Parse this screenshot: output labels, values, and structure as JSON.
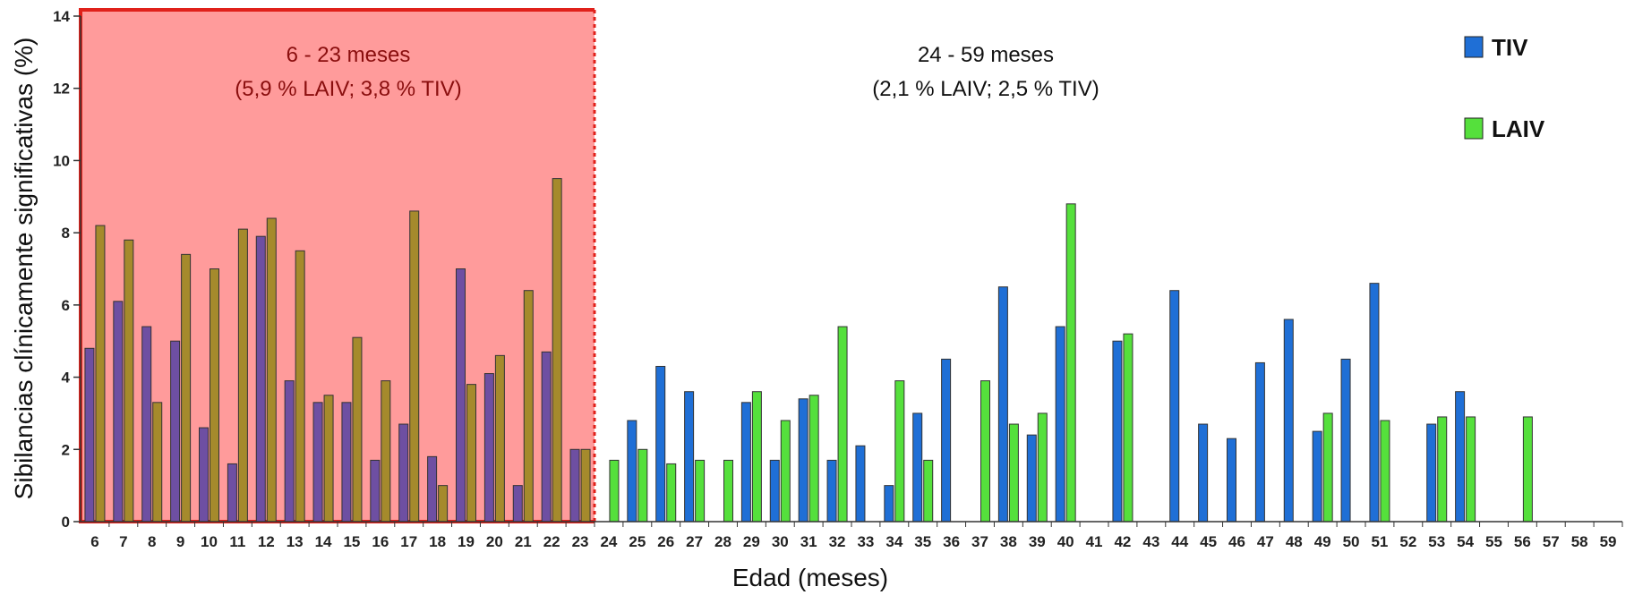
{
  "chart_data": {
    "type": "bar",
    "xlabel": "Edad (meses)",
    "ylabel": "Sibilancias clínicamente significativas (%)",
    "ylim": [
      0,
      14
    ],
    "yticks": [
      0,
      2,
      4,
      6,
      8,
      10,
      12,
      14
    ],
    "grid": false,
    "legend_position": "top-right",
    "categories": [
      "6",
      "7",
      "8",
      "9",
      "10",
      "11",
      "12",
      "13",
      "14",
      "15",
      "16",
      "17",
      "18",
      "19",
      "20",
      "21",
      "22",
      "23",
      "24",
      "25",
      "26",
      "27",
      "28",
      "29",
      "30",
      "31",
      "32",
      "33",
      "34",
      "35",
      "36",
      "37",
      "38",
      "39",
      "40",
      "41",
      "42",
      "43",
      "44",
      "45",
      "46",
      "47",
      "48",
      "49",
      "50",
      "51",
      "52",
      "53",
      "54",
      "55",
      "56",
      "57",
      "58",
      "59"
    ],
    "series": [
      {
        "name": "TIV",
        "color": "#1f6fd6",
        "values": [
          4.8,
          6.1,
          5.4,
          5.0,
          2.6,
          1.6,
          7.9,
          3.9,
          3.3,
          3.3,
          1.7,
          2.7,
          1.8,
          7.0,
          4.1,
          1.0,
          4.7,
          2.0,
          0,
          2.8,
          4.3,
          3.6,
          0,
          3.3,
          1.7,
          3.4,
          1.7,
          2.1,
          1.0,
          3.0,
          4.5,
          0,
          6.5,
          2.4,
          5.4,
          0,
          5.0,
          0,
          6.4,
          2.7,
          2.3,
          4.4,
          5.6,
          2.5,
          4.5,
          6.6,
          0,
          2.7,
          3.6,
          0,
          0,
          0,
          0,
          0
        ]
      },
      {
        "name": "LAIV",
        "color": "#55e03c",
        "values": [
          8.2,
          7.8,
          3.3,
          7.4,
          7.0,
          8.1,
          8.4,
          7.5,
          3.5,
          5.1,
          3.9,
          8.6,
          1.0,
          3.8,
          4.6,
          6.4,
          9.5,
          2.0,
          1.7,
          2.0,
          1.6,
          1.7,
          1.7,
          3.6,
          2.8,
          3.5,
          5.4,
          0,
          3.9,
          1.7,
          0,
          3.9,
          2.7,
          3.0,
          8.8,
          0,
          5.2,
          0,
          0,
          0,
          0,
          0,
          0,
          3.0,
          0,
          2.8,
          0,
          2.9,
          2.9,
          0,
          2.9,
          0,
          0,
          0
        ]
      }
    ],
    "regions": [
      {
        "label": "6 - 23 meses",
        "sublabel": "(5,9 % LAIV; 3,8 % TIV)",
        "from": "6",
        "to": "23",
        "fill": "#ff9b9b",
        "border": "#e0211b",
        "text_color": "#8a0e0e"
      },
      {
        "label": "24 - 59 meses",
        "sublabel": "(2,1 % LAIV; 2,5 % TIV)",
        "from": "24",
        "to": "59",
        "text_color": "#111111"
      }
    ]
  }
}
